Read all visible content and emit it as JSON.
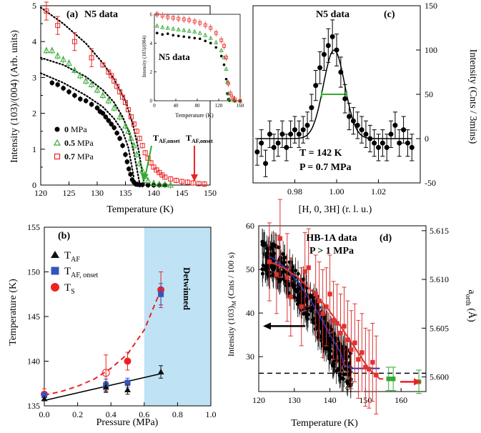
{
  "chart_data": [
    {
      "type": "scatter",
      "panel": "(a)",
      "title": "N5 data",
      "xlabel": "Temperature (K)",
      "ylabel": "Intensity (103)/(004) (Arb. units)",
      "xlim": [
        120,
        150
      ],
      "ylim": [
        0,
        5
      ],
      "xticks": [
        120,
        125,
        130,
        135,
        140,
        145,
        150
      ],
      "yticks": [
        0,
        0.5,
        1,
        1.5,
        2,
        2.5,
        3,
        3.5,
        4,
        4.5,
        5
      ],
      "legend_position": "lower-left",
      "annotations": [
        {
          "text": "T_AF,onset",
          "base": "T",
          "sub": "AF,onset",
          "x": 139.2,
          "y": 1.2
        },
        {
          "text": "T_AF,onset",
          "base": "T",
          "sub": "AF,onset",
          "x": 147.2,
          "y": 1.2
        }
      ],
      "series": [
        {
          "name": "0 MPa",
          "bold": "0",
          "unit": "MPa",
          "marker": "filled-circle",
          "color": "#000000",
          "x": [
            122,
            123,
            124,
            125,
            126,
            127,
            128,
            129,
            130,
            130.5,
            131,
            131.5,
            132,
            132.5,
            133,
            133.5,
            134,
            134.5,
            135,
            135.3,
            135.6,
            135.9,
            136.2,
            136.5,
            136.8,
            137.1,
            137.5,
            138,
            139,
            140,
            141,
            142
          ],
          "y": [
            2.85,
            2.8,
            2.7,
            2.6,
            2.5,
            2.4,
            2.35,
            2.25,
            2.15,
            2.05,
            2.0,
            1.9,
            1.8,
            1.7,
            1.6,
            1.45,
            1.3,
            1.1,
            0.85,
            0.65,
            0.45,
            0.3,
            0.15,
            0.08,
            0.03,
            0.02,
            0.01,
            0.01,
            0,
            0,
            0,
            0
          ]
        },
        {
          "name": "0.5 MPa",
          "bold": "0.5",
          "unit": "MPa",
          "marker": "open-triangle",
          "color": "#33aa33",
          "x": [
            121,
            122,
            123,
            124,
            125,
            126,
            127,
            128,
            129,
            130,
            131,
            132,
            133,
            134,
            135,
            135.5,
            136,
            136.5,
            137,
            137.5,
            138,
            138.5,
            139,
            140,
            141,
            142,
            143
          ],
          "y": [
            3.75,
            3.75,
            3.6,
            3.5,
            3.4,
            3.2,
            3.05,
            2.9,
            2.8,
            2.65,
            2.5,
            2.35,
            2.15,
            1.9,
            1.65,
            1.5,
            1.3,
            1.1,
            0.85,
            0.6,
            0.4,
            0.25,
            0.12,
            0.05,
            0.02,
            0.01,
            0
          ]
        },
        {
          "name": "0.7 MPa",
          "bold": "0.7",
          "unit": "MPa",
          "marker": "open-square",
          "color": "#ee2222",
          "x": [
            121,
            123,
            126,
            129,
            131,
            132,
            132.5,
            133,
            133.5,
            134,
            134.5,
            135,
            135.5,
            136,
            136.5,
            137,
            137.5,
            138,
            138.5,
            139,
            139.5,
            140,
            140.5,
            141,
            141.5,
            142,
            143,
            144,
            145,
            146,
            147,
            148,
            149
          ],
          "y": [
            4.85,
            4.45,
            4.0,
            3.55,
            3.35,
            3.15,
            3.05,
            2.9,
            2.75,
            2.6,
            2.45,
            2.3,
            2.1,
            1.9,
            1.7,
            1.5,
            1.3,
            1.1,
            0.9,
            0.75,
            0.62,
            0.5,
            0.42,
            0.35,
            0.28,
            0.22,
            0.17,
            0.13,
            0.1,
            0.08,
            0.06,
            0.04,
            0.03
          ]
        }
      ],
      "inset": {
        "title": "N5 data",
        "xlabel": "Temperature (K)",
        "ylabel": "Intensity (103)/(004)",
        "xlim": [
          0,
          160
        ],
        "ylim": [
          0,
          6
        ],
        "xticks": [
          0,
          40,
          80,
          120,
          160
        ],
        "yticks": [
          0,
          2,
          4,
          6
        ],
        "series": [
          {
            "name": "0 MPa",
            "color": "#000000",
            "x": [
              5,
              15,
              25,
              35,
              45,
              55,
              65,
              75,
              85,
              95,
              105,
              115,
              125,
              130,
              134,
              136,
              138,
              140,
              150,
              160
            ],
            "y": [
              4.7,
              4.6,
              4.65,
              4.55,
              4.5,
              4.45,
              4.4,
              4.35,
              4.3,
              4.15,
              4.0,
              3.7,
              3.1,
              2.5,
              1.5,
              0.5,
              0.1,
              0,
              0,
              0
            ]
          },
          {
            "name": "0.5 MPa",
            "color": "#33aa33",
            "x": [
              5,
              15,
              25,
              35,
              45,
              55,
              65,
              75,
              85,
              95,
              105,
              115,
              125,
              130,
              134,
              136,
              138,
              140,
              150,
              160
            ],
            "y": [
              5.2,
              5.1,
              5.05,
              5.0,
              4.95,
              4.9,
              4.85,
              4.8,
              4.7,
              4.55,
              4.35,
              4.05,
              3.5,
              3.0,
              2.2,
              1.3,
              0.5,
              0.1,
              0,
              0
            ]
          },
          {
            "name": "0.7 MPa",
            "color": "#ee2222",
            "x": [
              5,
              15,
              25,
              35,
              45,
              55,
              65,
              75,
              85,
              95,
              105,
              115,
              125,
              130,
              134,
              138,
              142,
              146,
              150,
              160
            ],
            "y": [
              6.0,
              5.9,
              5.8,
              5.75,
              5.7,
              5.65,
              5.6,
              5.5,
              5.4,
              5.25,
              5.05,
              4.7,
              4.2,
              3.8,
              3.0,
              1.2,
              0.5,
              0.2,
              0.1,
              0
            ]
          }
        ]
      }
    },
    {
      "type": "scatter",
      "panel": "(c)",
      "title": "N5 data",
      "xlabel": "[H, 0, 3H] (r. l. u.)",
      "ylabel": "Intensity (Cnts / 3mins)",
      "xlim": [
        0.96,
        1.04
      ],
      "ylim": [
        -50,
        150
      ],
      "xticks": [
        0.98,
        1.0,
        1.02
      ],
      "yticks": [
        -50,
        0,
        50,
        100,
        150
      ],
      "y_axis_side": "right",
      "annotations": [
        "T = 142 K",
        "P = 0.7 MPa"
      ],
      "fwhm_bar": {
        "x": [
          0.9928,
          1.0048
        ],
        "y": 50,
        "color": "#33aa33"
      },
      "series": [
        {
          "name": "",
          "marker": "filled-circle",
          "color": "#000000",
          "x": [
            0.962,
            0.964,
            0.966,
            0.968,
            0.97,
            0.972,
            0.974,
            0.976,
            0.978,
            0.98,
            0.982,
            0.984,
            0.986,
            0.988,
            0.99,
            0.992,
            0.994,
            0.996,
            0.998,
            1.0,
            1.002,
            1.004,
            1.006,
            1.008,
            1.01,
            1.012,
            1.014,
            1.016,
            1.018,
            1.02,
            1.022,
            1.024,
            1.026,
            1.028,
            1.03,
            1.032,
            1.034,
            1.036
          ],
          "y": [
            -15,
            -5,
            -28,
            5,
            -10,
            -5,
            5,
            -10,
            5,
            10,
            5,
            10,
            15,
            35,
            60,
            80,
            95,
            105,
            115,
            100,
            75,
            45,
            25,
            20,
            15,
            10,
            5,
            0,
            -5,
            -10,
            -5,
            -10,
            5,
            15,
            -5,
            10,
            -5,
            -10
          ],
          "err": [
            15,
            15,
            15,
            15,
            15,
            15,
            15,
            15,
            15,
            15,
            15,
            15,
            15,
            15,
            17,
            18,
            18,
            19,
            19,
            18,
            17,
            16,
            15,
            15,
            15,
            15,
            15,
            15,
            15,
            15,
            15,
            15,
            15,
            15,
            15,
            15,
            15,
            15
          ]
        },
        {
          "name": "",
          "type": "line",
          "color": "#000000",
          "gaussian": {
            "amplitude": 100,
            "center": 0.9988,
            "sigma": 0.0051,
            "background": 0
          }
        }
      ]
    },
    {
      "type": "scatter",
      "panel": "(b)",
      "xlabel": "Pressure (MPa)",
      "ylabel": "Temperature (K)",
      "xlim": [
        0,
        1.0
      ],
      "ylim": [
        135,
        155
      ],
      "xticks": [
        0.0,
        0.2,
        0.4,
        0.6,
        0.8,
        1.0
      ],
      "yticks": [
        135,
        140,
        145,
        150,
        155
      ],
      "legend_position": "upper-left",
      "shaded_region": {
        "x": [
          0.6,
          1.0
        ],
        "label": "Detwinned",
        "color": "#bfe2f4"
      },
      "series": [
        {
          "name": "T_AF",
          "base": "T",
          "sub": "AF",
          "marker": "filled-triangle",
          "color": "#111111",
          "x": [
            0.0,
            0.37,
            0.5,
            0.7
          ],
          "y": [
            135.8,
            137.1,
            136.8,
            138.8
          ],
          "err": [
            0,
            0.6,
            0.5,
            0.7
          ]
        },
        {
          "name": "T_AF, onset",
          "base": "T",
          "sub": "AF, onset",
          "marker": "filled-square",
          "color": "#3355bb",
          "x": [
            0.0,
            0.37,
            0.5,
            0.7
          ],
          "y": [
            136.2,
            137.3,
            137.6,
            147.5
          ],
          "err": [
            0,
            0.7,
            0.5,
            1.2
          ]
        },
        {
          "name": "T_S",
          "base": "T",
          "sub": "S",
          "marker": "filled-circle",
          "color": "#ee2222",
          "x": [
            0.0,
            0.37,
            0.5,
            0.7
          ],
          "y": [
            136.3,
            138.7,
            140.0,
            148.0
          ],
          "err": [
            0.6,
            2.0,
            1.0,
            2.0
          ]
        },
        {
          "name": "",
          "type": "line",
          "style": "solid",
          "color": "#000000",
          "x": [
            0.0,
            0.7
          ],
          "y": [
            135.6,
            138.6
          ]
        },
        {
          "name": "",
          "type": "line",
          "style": "dashed",
          "color": "#ee2222",
          "x": [
            0.0,
            0.1,
            0.2,
            0.3,
            0.4,
            0.5,
            0.6,
            0.7
          ],
          "y": [
            136.2,
            136.6,
            137.2,
            138.0,
            139.2,
            140.8,
            143.5,
            148.0
          ]
        }
      ]
    },
    {
      "type": "scatter",
      "panel": "(d)",
      "title": "HB-1A data",
      "subtitle": "P > 1 MPa",
      "xlabel": "Temperature (K)",
      "ylabel": "Intensity (103)_M (Cnts / 100 s)",
      "ylabel_base": "Intensity (103)",
      "ylabel_sub": "M",
      "ylabel_tail": " (Cnts / 100 s)",
      "y2label": "a_orth (Å)",
      "y2label_base": "a",
      "y2label_sub": "orth",
      "y2label_tail": " (Å)",
      "xlim": [
        120,
        167
      ],
      "ylim": [
        22,
        60
      ],
      "y2lim": [
        5.5985,
        5.6155
      ],
      "xticks": [
        120,
        130,
        140,
        150,
        160
      ],
      "yticks": [
        30,
        40,
        50,
        60
      ],
      "y2ticks": [
        "5.600",
        "5.605",
        "5.610",
        "5.615"
      ],
      "y2tick_values": [
        5.6,
        5.605,
        5.61,
        5.615
      ],
      "background_level": 26.2,
      "arrows": [
        {
          "direction": "left",
          "color": "#000000",
          "axis": "left",
          "y": 37
        },
        {
          "direction": "right",
          "color": "#ee2222",
          "axis": "right",
          "y": 5.5995
        }
      ],
      "series": [
        {
          "name": "",
          "marker": "filled-circle",
          "color": "#000000",
          "density": 360,
          "x_range": [
            121,
            146
          ],
          "trend_x": [
            121,
            125,
            130,
            135,
            140,
            143,
            146
          ],
          "trend_y": [
            53,
            52,
            47,
            41,
            33,
            29,
            27
          ],
          "scatter": 4,
          "err": 3
        },
        {
          "name": "",
          "type": "line",
          "color": "#2233aa",
          "x": [
            123,
            125,
            128,
            132,
            136,
            140,
            143,
            144,
            146,
            149,
            152,
            154
          ],
          "y": [
            53,
            52,
            50,
            46,
            41,
            35,
            31,
            28,
            27.3,
            27.3,
            27.3,
            27.3
          ]
        },
        {
          "name": "",
          "marker": "filled-square",
          "color": "#dd3333",
          "axis": "right",
          "x": [
            123,
            125,
            126,
            128,
            129,
            132,
            133,
            134,
            136,
            137,
            138,
            139,
            140,
            141,
            142,
            143,
            144,
            145,
            146,
            147,
            148,
            149,
            150,
            151,
            152,
            153
          ],
          "y": [
            5.6118,
            5.6105,
            5.6142,
            5.6102,
            5.6082,
            5.6072,
            5.6108,
            5.6112,
            5.6085,
            5.6078,
            5.6065,
            5.6072,
            5.6085,
            5.6058,
            5.6055,
            5.6045,
            5.6052,
            5.6038,
            5.6028,
            5.6035,
            5.6018,
            5.6025,
            5.601,
            5.6008,
            5.6015,
            5.6002
          ],
          "err": [
            0.004,
            0.004,
            0.004,
            0.0045,
            0.004,
            0.004,
            0.004,
            0.004,
            0.004,
            0.004,
            0.0045,
            0.004,
            0.004,
            0.004,
            0.004,
            0.004,
            0.004,
            0.004,
            0.004,
            0.004,
            0.004,
            0.004,
            0.004,
            0.004,
            0.004,
            0.004
          ]
        },
        {
          "name": "",
          "type": "line",
          "color": "#dd3333",
          "axis": "right",
          "x": [
            123,
            127,
            131,
            135,
            139,
            143,
            147,
            151,
            154,
            155
          ],
          "y": [
            5.6118,
            5.6112,
            5.6102,
            5.6088,
            5.6072,
            5.6052,
            5.603,
            5.6008,
            5.5998,
            5.5998
          ]
        },
        {
          "name": "",
          "marker": "filled-square",
          "color": "#33aa33",
          "axis": "right",
          "x": [
            156.5,
            157.8,
            165
          ],
          "y": [
            5.5998,
            5.5998,
            5.5995
          ],
          "err": [
            0.0012,
            0.0012,
            0.0012
          ]
        }
      ]
    }
  ]
}
